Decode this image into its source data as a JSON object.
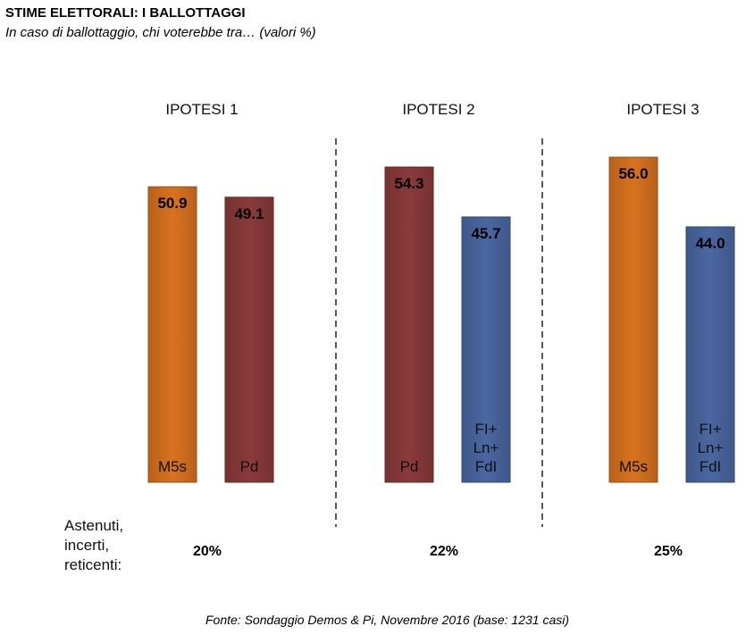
{
  "header": {
    "title": "STIME ELETTORALI: I BALLOTTAGGI",
    "subtitle": "In caso di ballottaggio, chi voterebbe tra… (valori %)"
  },
  "footer": {
    "source": "Fonte: Sondaggio Demos & Pi, Novembre 2016 (base: 1231 casi)"
  },
  "chart_data": {
    "type": "bar",
    "title": "STIME ELETTORALI: I BALLOTTAGGI",
    "subtitle": "In caso di ballottaggio, chi voterebbe tra… (valori %)",
    "unit": "%",
    "abstention_label": [
      "Astenuti,",
      "incerti,",
      "reticenti:"
    ],
    "groups": [
      {
        "label": "IPOTESI 1",
        "abstention": "20%",
        "bars": [
          {
            "party": [
              "M5s"
            ],
            "value": 50.9,
            "value_label": "50.9",
            "color": "#D8721F"
          },
          {
            "party": [
              "Pd"
            ],
            "value": 49.1,
            "value_label": "49.1",
            "color": "#8B3A3A"
          }
        ]
      },
      {
        "label": "IPOTESI 2",
        "abstention": "22%",
        "bars": [
          {
            "party": [
              "Pd"
            ],
            "value": 54.3,
            "value_label": "54.3",
            "color": "#8B3A3A"
          },
          {
            "party": [
              "FI+",
              "Ln+",
              "FdI"
            ],
            "value": 45.7,
            "value_label": "45.7",
            "color": "#4A67A1"
          }
        ]
      },
      {
        "label": "IPOTESI 3",
        "abstention": "25%",
        "bars": [
          {
            "party": [
              "M5s"
            ],
            "value": 56.0,
            "value_label": "56.0",
            "color": "#D8721F"
          },
          {
            "party": [
              "FI+",
              "Ln+",
              "FdI"
            ],
            "value": 44.0,
            "value_label": "44.0",
            "color": "#4A67A1"
          }
        ]
      }
    ],
    "separators": "dashed-vertical",
    "grid": false,
    "legend": "none"
  }
}
